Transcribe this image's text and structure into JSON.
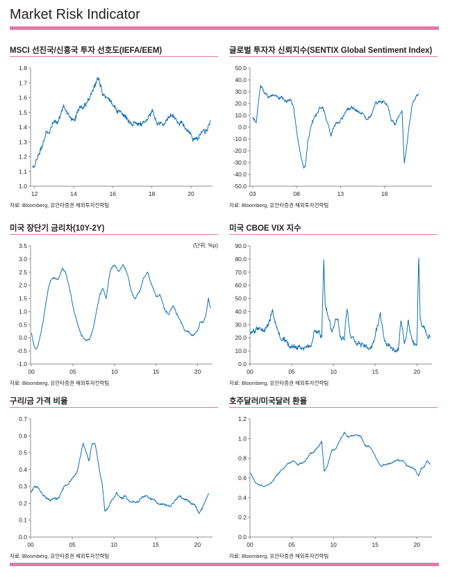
{
  "page": {
    "title": "Market Risk Indicator"
  },
  "source_note": "자료: Bloomberg, 유안타증권 해외투자전략팀",
  "chart_data": [
    {
      "id": "msci",
      "type": "line",
      "title": "MSCI 선진국/신흥국 투자 선호도(IEFA/EEM)",
      "unit": "",
      "x_range": [
        2011.8,
        2021.1
      ],
      "y_range": [
        1.0,
        1.8
      ],
      "y_ticks": [
        1.0,
        1.1,
        1.2,
        1.3,
        1.4,
        1.5,
        1.6,
        1.7,
        1.8
      ],
      "y_decimals": 1,
      "x_ticks": [
        {
          "v": 2012,
          "label": "12"
        },
        {
          "v": 2014,
          "label": "14"
        },
        {
          "v": 2016,
          "label": "16"
        },
        {
          "v": 2018,
          "label": "18"
        },
        {
          "v": 2020,
          "label": "20"
        }
      ],
      "noise": 0.022,
      "x": [
        2011.9,
        2012.1,
        2012.4,
        2012.6,
        2012.9,
        2013.2,
        2013.5,
        2013.7,
        2014.0,
        2014.3,
        2014.6,
        2014.9,
        2015.1,
        2015.3,
        2015.5,
        2015.7,
        2016.0,
        2016.2,
        2016.5,
        2016.8,
        2017.0,
        2017.3,
        2017.6,
        2017.9,
        2018.0,
        2018.2,
        2018.5,
        2018.8,
        2019.0,
        2019.3,
        2019.6,
        2019.9,
        2020.1,
        2020.3,
        2020.5,
        2020.8,
        2021.0
      ],
      "y": [
        1.14,
        1.17,
        1.27,
        1.36,
        1.41,
        1.45,
        1.53,
        1.5,
        1.44,
        1.52,
        1.55,
        1.62,
        1.68,
        1.71,
        1.63,
        1.6,
        1.57,
        1.52,
        1.5,
        1.45,
        1.42,
        1.44,
        1.43,
        1.49,
        1.51,
        1.44,
        1.43,
        1.45,
        1.48,
        1.44,
        1.42,
        1.36,
        1.31,
        1.33,
        1.37,
        1.38,
        1.45
      ]
    },
    {
      "id": "sentix",
      "type": "line",
      "title": "글로벌 투자자 신뢰지수(SENTIX Global Sentiment Index)",
      "unit": "",
      "x_range": [
        2002.7,
        2023.4
      ],
      "y_range": [
        -50,
        50
      ],
      "y_ticks": [
        -50,
        -40,
        -30,
        -20,
        -10,
        0,
        10,
        20,
        30,
        40,
        50
      ],
      "y_decimals": 1,
      "x_ticks": [
        {
          "v": 2003,
          "label": "03"
        },
        {
          "v": 2008,
          "label": "08"
        },
        {
          "v": 2013,
          "label": "13"
        },
        {
          "v": 2018,
          "label": "18"
        }
      ],
      "noise": 1.6,
      "x": [
        2003.0,
        2003.4,
        2003.9,
        2004.3,
        2004.8,
        2005.3,
        2005.8,
        2006.3,
        2006.8,
        2007.3,
        2007.7,
        2008.0,
        2008.4,
        2008.8,
        2009.0,
        2009.3,
        2009.7,
        2010.2,
        2010.6,
        2011.0,
        2011.5,
        2011.9,
        2012.3,
        2012.6,
        2013.0,
        2013.5,
        2014.0,
        2014.5,
        2015.0,
        2015.5,
        2016.0,
        2016.5,
        2017.0,
        2017.5,
        2018.0,
        2018.4,
        2018.8,
        2019.2,
        2019.6,
        2020.0,
        2020.25,
        2020.5,
        2020.8,
        2021.2,
        2021.6,
        2021.9
      ],
      "y": [
        8,
        4,
        35,
        30,
        25,
        28,
        27,
        25,
        22,
        24,
        15,
        -5,
        -22,
        -36,
        -33,
        -10,
        2,
        10,
        16,
        18,
        4,
        -6,
        2,
        3,
        6,
        12,
        16,
        16,
        13,
        12,
        6,
        11,
        20,
        21,
        22,
        18,
        6,
        2,
        8,
        13,
        -31,
        -18,
        2,
        21,
        25,
        28
      ]
    },
    {
      "id": "spread",
      "type": "line",
      "title": "미국 장단기 금리차(10Y-2Y)",
      "unit": "(단위: %p)",
      "x_range": [
        1999.9,
        2021.8
      ],
      "y_range": [
        -1.0,
        3.5
      ],
      "y_ticks": [
        -1.0,
        -0.5,
        0.0,
        0.5,
        1.0,
        1.5,
        2.0,
        2.5,
        3.0,
        3.5
      ],
      "y_decimals": 1,
      "x_ticks": [
        {
          "v": 2000,
          "label": "00"
        },
        {
          "v": 2005,
          "label": "05"
        },
        {
          "v": 2010,
          "label": "10"
        },
        {
          "v": 2015,
          "label": "15"
        },
        {
          "v": 2020,
          "label": "20"
        }
      ],
      "noise": 0.05,
      "x": [
        2000.0,
        2000.3,
        2000.6,
        2000.9,
        2001.3,
        2001.7,
        2002.1,
        2002.6,
        2003.2,
        2003.7,
        2004.1,
        2004.5,
        2005.0,
        2005.5,
        2006.0,
        2006.5,
        2007.0,
        2007.4,
        2007.8,
        2008.2,
        2008.6,
        2009.0,
        2009.5,
        2010.0,
        2010.5,
        2011.0,
        2011.5,
        2012.0,
        2012.5,
        2013.0,
        2013.5,
        2014.0,
        2014.5,
        2015.0,
        2015.5,
        2016.0,
        2016.5,
        2017.0,
        2017.5,
        2018.0,
        2018.5,
        2019.0,
        2019.5,
        2020.0,
        2020.3,
        2020.7,
        2021.0,
        2021.3,
        2021.6
      ],
      "y": [
        0.2,
        -0.3,
        -0.45,
        -0.2,
        0.4,
        1.2,
        2.0,
        2.3,
        2.2,
        2.6,
        2.5,
        2.0,
        1.2,
        0.6,
        0.1,
        -0.1,
        -0.05,
        0.3,
        0.9,
        1.6,
        1.9,
        1.5,
        2.6,
        2.8,
        2.5,
        2.8,
        2.5,
        1.8,
        1.5,
        1.7,
        2.3,
        2.5,
        2.0,
        1.6,
        1.6,
        1.1,
        0.9,
        1.2,
        0.9,
        0.6,
        0.3,
        0.2,
        0.05,
        0.25,
        0.55,
        0.6,
        0.9,
        1.55,
        1.1
      ]
    },
    {
      "id": "vix",
      "type": "line",
      "title": "미국 CBOE VIX 지수",
      "unit": "",
      "x_range": [
        2000.0,
        2021.8
      ],
      "y_range": [
        0,
        90
      ],
      "y_ticks": [
        0,
        10,
        20,
        30,
        40,
        50,
        60,
        70,
        80,
        90
      ],
      "y_decimals": 1,
      "x_ticks": [
        {
          "v": 2000,
          "label": "00"
        },
        {
          "v": 2005,
          "label": "05"
        },
        {
          "v": 2010,
          "label": "10"
        },
        {
          "v": 2015,
          "label": "15"
        },
        {
          "v": 2020,
          "label": "20"
        }
      ],
      "noise": 2.4,
      "x": [
        2000.0,
        2000.5,
        2001.0,
        2001.7,
        2002.3,
        2002.7,
        2003.2,
        2003.7,
        2004.5,
        2005.5,
        2006.5,
        2007.3,
        2007.7,
        2008.3,
        2008.6,
        2008.85,
        2009.0,
        2009.3,
        2009.8,
        2010.4,
        2010.8,
        2011.3,
        2011.65,
        2012.0,
        2012.5,
        2013.0,
        2014.0,
        2014.8,
        2015.6,
        2016.0,
        2016.5,
        2017.0,
        2017.8,
        2018.1,
        2018.5,
        2018.95,
        2019.5,
        2020.0,
        2020.22,
        2020.4,
        2020.7,
        2021.0,
        2021.3,
        2021.6
      ],
      "y": [
        22,
        25,
        28,
        26,
        32,
        40,
        28,
        20,
        15,
        12,
        12,
        14,
        25,
        24,
        22,
        80,
        45,
        40,
        24,
        36,
        22,
        18,
        44,
        22,
        18,
        14,
        13,
        16,
        38,
        22,
        14,
        11,
        10,
        35,
        14,
        33,
        16,
        14,
        82,
        32,
        28,
        28,
        18,
        20
      ]
    },
    {
      "id": "copper",
      "type": "line",
      "title": "구리/금 가격 비율",
      "unit": "",
      "x_range": [
        2000.0,
        2021.8
      ],
      "y_range": [
        0.0,
        0.7
      ],
      "y_ticks": [
        0.0,
        0.1,
        0.2,
        0.3,
        0.4,
        0.5,
        0.6,
        0.7
      ],
      "y_decimals": 1,
      "x_ticks": [
        {
          "v": 2000,
          "label": "00"
        },
        {
          "v": 2005,
          "label": "05"
        },
        {
          "v": 2010,
          "label": "10"
        },
        {
          "v": 2015,
          "label": "15"
        },
        {
          "v": 2020,
          "label": "20"
        }
      ],
      "noise": 0.008,
      "x": [
        2000.0,
        2000.5,
        2001.0,
        2001.5,
        2002.0,
        2002.5,
        2003.0,
        2003.5,
        2004.0,
        2004.5,
        2005.0,
        2005.5,
        2006.0,
        2006.3,
        2006.7,
        2007.0,
        2007.4,
        2007.8,
        2008.2,
        2008.6,
        2008.9,
        2009.3,
        2009.8,
        2010.3,
        2010.8,
        2011.3,
        2011.8,
        2012.3,
        2012.8,
        2013.3,
        2013.8,
        2014.3,
        2014.8,
        2015.3,
        2015.8,
        2016.3,
        2016.8,
        2017.3,
        2017.8,
        2018.3,
        2018.8,
        2019.3,
        2019.8,
        2020.2,
        2020.6,
        2021.0,
        2021.4
      ],
      "y": [
        0.27,
        0.3,
        0.29,
        0.25,
        0.23,
        0.22,
        0.22,
        0.24,
        0.29,
        0.31,
        0.34,
        0.38,
        0.48,
        0.56,
        0.5,
        0.45,
        0.56,
        0.54,
        0.42,
        0.3,
        0.15,
        0.17,
        0.22,
        0.26,
        0.23,
        0.24,
        0.21,
        0.21,
        0.21,
        0.23,
        0.24,
        0.23,
        0.22,
        0.21,
        0.19,
        0.19,
        0.18,
        0.21,
        0.25,
        0.23,
        0.22,
        0.2,
        0.18,
        0.14,
        0.17,
        0.22,
        0.25
      ]
    },
    {
      "id": "audusd",
      "type": "line",
      "title": "호주달러/미국달러 환율",
      "unit": "",
      "x_range": [
        2000.0,
        2021.8
      ],
      "y_range": [
        0.0,
        1.2
      ],
      "y_ticks": [
        0.0,
        0.2,
        0.4,
        0.6,
        0.8,
        1.0,
        1.2
      ],
      "y_decimals": 1,
      "x_ticks": [
        {
          "v": 2000,
          "label": "00"
        },
        {
          "v": 2005,
          "label": "05"
        },
        {
          "v": 2010,
          "label": "10"
        },
        {
          "v": 2015,
          "label": "15"
        },
        {
          "v": 2020,
          "label": "20"
        }
      ],
      "noise": 0.01,
      "x": [
        2000.0,
        2000.6,
        2001.2,
        2001.8,
        2002.5,
        2003.0,
        2003.6,
        2004.2,
        2005.0,
        2005.8,
        2006.5,
        2007.2,
        2007.8,
        2008.3,
        2008.6,
        2008.9,
        2009.3,
        2009.8,
        2010.3,
        2010.8,
        2011.3,
        2011.8,
        2012.3,
        2012.8,
        2013.3,
        2013.8,
        2014.3,
        2014.8,
        2015.3,
        2015.8,
        2016.3,
        2016.8,
        2017.3,
        2017.8,
        2018.3,
        2018.8,
        2019.3,
        2019.8,
        2020.2,
        2020.5,
        2020.9,
        2021.2,
        2021.6
      ],
      "y": [
        0.66,
        0.56,
        0.52,
        0.51,
        0.55,
        0.6,
        0.66,
        0.72,
        0.77,
        0.74,
        0.76,
        0.84,
        0.88,
        0.93,
        0.97,
        0.66,
        0.72,
        0.88,
        0.9,
        0.98,
        1.06,
        1.02,
        1.03,
        1.04,
        1.02,
        0.93,
        0.92,
        0.86,
        0.77,
        0.72,
        0.74,
        0.75,
        0.77,
        0.78,
        0.77,
        0.72,
        0.71,
        0.69,
        0.62,
        0.7,
        0.72,
        0.78,
        0.74
      ]
    }
  ]
}
